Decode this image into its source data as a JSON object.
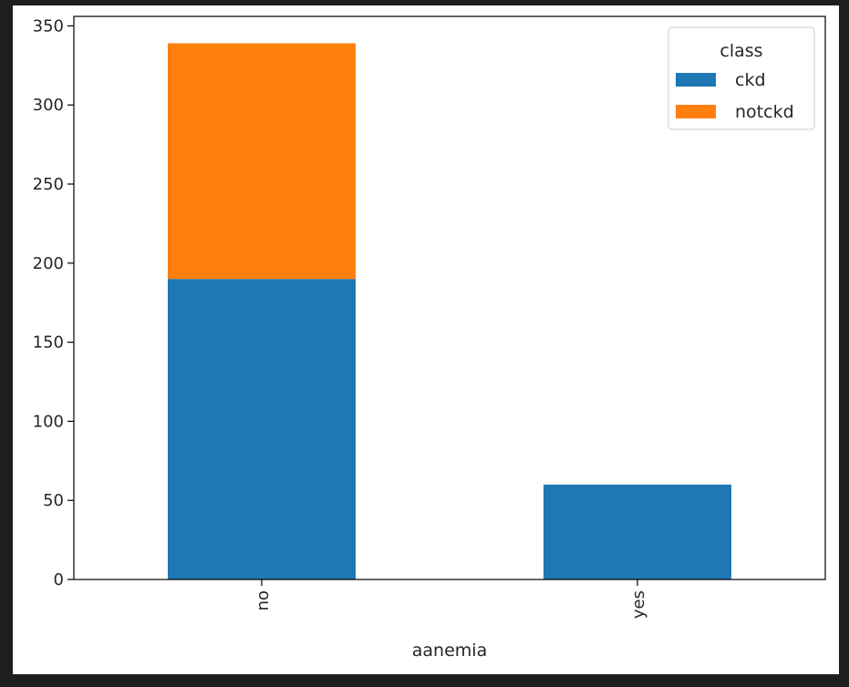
{
  "chart_data": {
    "type": "bar",
    "stacked": true,
    "categories": [
      "no",
      "yes"
    ],
    "series": [
      {
        "name": "ckd",
        "values": [
          190,
          60
        ],
        "color": "#1f77b4"
      },
      {
        "name": "notckd",
        "values": [
          149,
          0
        ],
        "color": "#ff7f0e"
      }
    ],
    "xlabel": "aanemia",
    "ylabel": "",
    "ylim": [
      0,
      356
    ],
    "yticks": [
      0,
      50,
      100,
      150,
      200,
      250,
      300,
      350
    ],
    "grid": false,
    "legend": {
      "title": "class",
      "placement": "top-right"
    }
  }
}
